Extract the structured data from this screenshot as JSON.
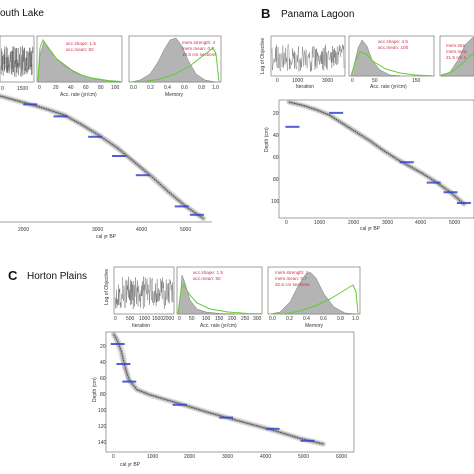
{
  "panels": [
    {
      "id": "A",
      "letter": "",
      "site": "outh Lake",
      "diag": {
        "iter_xlabel": "",
        "iter_ticks": [
          "0",
          "1500"
        ],
        "acc_xlabel": "Acc. rate (yr/cm)",
        "acc_ticks": [
          "0",
          "20",
          "40",
          "60",
          "80",
          "100"
        ],
        "acc_ann": [
          "acc.shape: 1.5",
          "acc.mean: 50"
        ],
        "mem_xlabel": "Memory",
        "mem_ticks": [
          "0.0",
          "0.2",
          "0.4",
          "0.6",
          "0.8",
          "1.0"
        ],
        "mem_ann": [
          "mem.strength: 4",
          "mem.mean: 0.7",
          "10.5 cm sections"
        ]
      },
      "agedepth": {
        "xlabel": "cal yr BP",
        "xticks": [
          "2000",
          "3000",
          "4000",
          "5000"
        ],
        "ylabel": "",
        "yticks": []
      }
    },
    {
      "id": "B",
      "letter": "B",
      "site": "Panama Lagoon",
      "diag": {
        "iter_ylabel": "Log of Objective",
        "iter_xlabel": "Iteration",
        "iter_ticks": [
          "0",
          "1000",
          "3000"
        ],
        "acc_xlabel": "Acc. rate (yr/cm)",
        "acc_ticks": [
          "0",
          "50",
          "150"
        ],
        "acc_ann": [
          "acc.shape: 4.5",
          "acc.mean: 100"
        ],
        "mem_ann": [
          "mem.stre",
          "mem.mea",
          "21.5 cm s"
        ]
      },
      "agedepth": {
        "xlabel": "cal yr BP",
        "xticks": [
          "0",
          "1000",
          "2000",
          "3000",
          "4000",
          "5000"
        ],
        "ylabel": "Depth (cm)",
        "yticks": [
          "20",
          "40",
          "60",
          "80",
          "100"
        ]
      }
    },
    {
      "id": "C",
      "letter": "C",
      "site": "Horton Plains",
      "diag": {
        "iter_ylabel": "Log of Objective",
        "iter_xlabel": "Iteration",
        "iter_ticks": [
          "0",
          "500",
          "1000",
          "1500",
          "2000"
        ],
        "acc_xlabel": "Acc. rate (yr/cm)",
        "acc_ticks": [
          "0",
          "50",
          "100",
          "150",
          "200",
          "250",
          "300"
        ],
        "acc_ann": [
          "acc.shape: 1.5",
          "acc.mean: 50"
        ],
        "mem_xlabel": "Memory",
        "mem_ticks": [
          "0.0",
          "0.2",
          "0.4",
          "0.6",
          "0.8",
          "1.0"
        ],
        "mem_ann": [
          "mem.strength: 4",
          "mem.mean: 0.7",
          "32.5 cm sections"
        ]
      },
      "agedepth": {
        "xlabel": "cal yr BP",
        "xticks": [
          "0",
          "1000",
          "2000",
          "3000",
          "4000",
          "5000",
          "6000"
        ],
        "ylabel": "Depth (cm)",
        "yticks": [
          "20",
          "40",
          "60",
          "80",
          "100",
          "120",
          "140"
        ]
      }
    }
  ],
  "colors": {
    "prior": "#66cc33",
    "posterior": "#b4b4b4",
    "dates": "#3344cc",
    "model": "#222222",
    "annotation": "#d0304a"
  },
  "chart_data": [
    {
      "type": "line",
      "panel": "A",
      "xlabel": "cal yr BP",
      "ylabel": "",
      "xlim": [
        1000,
        5900
      ],
      "ylim": [
        0,
        105
      ],
      "series": [
        {
          "x": [
            1000,
            1500,
            2000,
            2500,
            2900,
            3300,
            3700,
            4100,
            4500,
            4900,
            5300,
            5700
          ],
          "y": [
            0,
            5,
            10,
            16,
            24,
            33,
            43,
            55,
            67,
            80,
            92,
            102
          ]
        }
      ],
      "dates": [
        {
          "x": 1700,
          "y": 7
        },
        {
          "x": 2400,
          "y": 17
        },
        {
          "x": 3200,
          "y": 34
        },
        {
          "x": 3750,
          "y": 50
        },
        {
          "x": 4300,
          "y": 66
        },
        {
          "x": 5200,
          "y": 92
        },
        {
          "x": 5550,
          "y": 99
        }
      ]
    },
    {
      "type": "line",
      "panel": "B",
      "xlabel": "cal yr BP",
      "ylabel": "Depth (cm)",
      "xlim": [
        -200,
        5600
      ],
      "ylim": [
        0,
        110
      ],
      "series": [
        {
          "x": [
            100,
            500,
            900,
            1300,
            1700,
            2100,
            2500,
            2900,
            3300,
            3700,
            4100,
            4500,
            4900,
            5300
          ],
          "y": [
            2,
            5,
            9,
            14,
            22,
            30,
            38,
            47,
            55,
            62,
            69,
            77,
            86,
            97
          ]
        }
      ],
      "dates": [
        {
          "x": 200,
          "y": 25
        },
        {
          "x": 1500,
          "y": 12
        },
        {
          "x": 3600,
          "y": 58
        },
        {
          "x": 4400,
          "y": 77
        },
        {
          "x": 4900,
          "y": 86
        },
        {
          "x": 5300,
          "y": 96
        }
      ]
    },
    {
      "type": "line",
      "panel": "C",
      "xlabel": "cal yr BP",
      "ylabel": "Depth (cm)",
      "xlim": [
        -200,
        6200
      ],
      "ylim": [
        0,
        150
      ],
      "series": [
        {
          "x": [
            0,
            100,
            200,
            300,
            400,
            600,
            900,
            1300,
            1800,
            2400,
            3000,
            3600,
            4200,
            4800,
            5400
          ],
          "y": [
            3,
            12,
            25,
            45,
            60,
            72,
            78,
            84,
            91,
            100,
            108,
            116,
            124,
            133,
            140
          ]
        }
      ],
      "dates": [
        {
          "x": 100,
          "y": 15
        },
        {
          "x": 250,
          "y": 40
        },
        {
          "x": 400,
          "y": 62
        },
        {
          "x": 1700,
          "y": 91
        },
        {
          "x": 2900,
          "y": 107
        },
        {
          "x": 4100,
          "y": 121
        },
        {
          "x": 5000,
          "y": 136
        }
      ]
    }
  ]
}
